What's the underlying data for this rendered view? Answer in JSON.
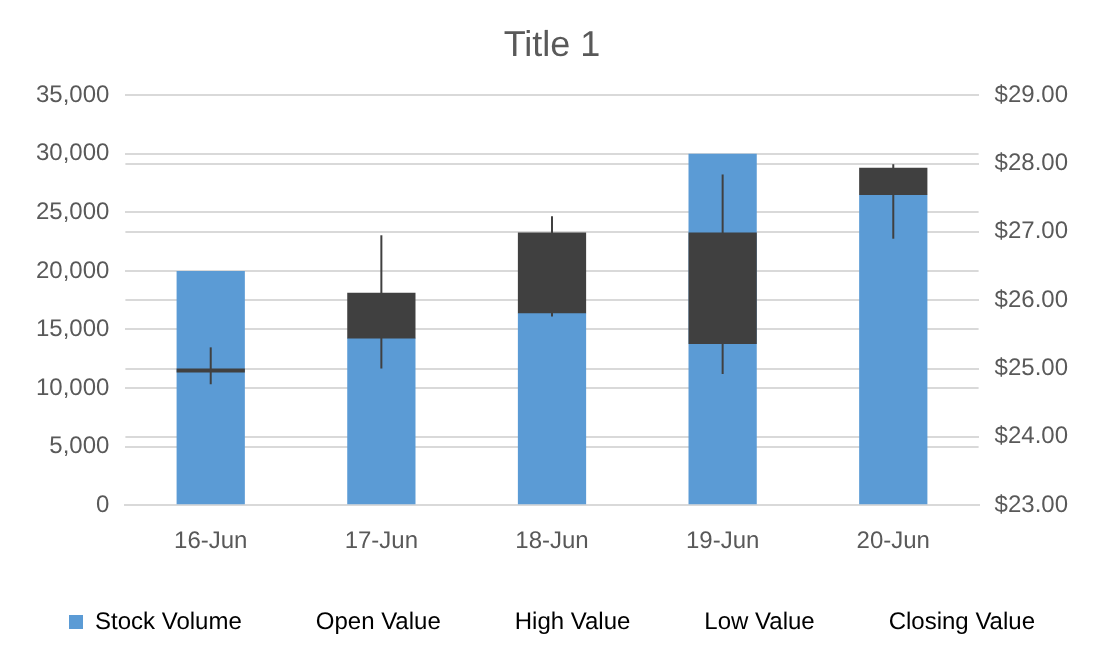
{
  "chart_data": {
    "type": "candlestick",
    "title": "Title 1",
    "categories": [
      "16-Jun",
      "17-Jun",
      "18-Jun",
      "19-Jun",
      "20-Jun"
    ],
    "series": [
      {
        "type": "bar",
        "name": "Stock Volume",
        "color": "#5b9bd5",
        "values": [
          20000,
          14300,
          16400,
          30000,
          26500
        ]
      },
      {
        "axis": "y2",
        "color": "#404040",
        "ohlc": [
          [
            25.0,
            25.31,
            24.77,
            24.95
          ],
          [
            26.11,
            26.95,
            25.0,
            25.44
          ],
          [
            26.99,
            27.23,
            25.76,
            25.81
          ],
          [
            26.99,
            27.84,
            24.92,
            25.36
          ],
          [
            27.94,
            27.99,
            26.9,
            27.54
          ]
        ]
      }
    ],
    "ylim": [
      0,
      35000
    ],
    "yticks": [
      {
        "value": 0,
        "label": "0"
      },
      {
        "value": 5000,
        "label": "5,000"
      },
      {
        "value": 10000,
        "label": "10,000"
      },
      {
        "value": 15000,
        "label": "15,000"
      },
      {
        "value": 20000,
        "label": "20,000"
      },
      {
        "value": 25000,
        "label": "25,000"
      },
      {
        "value": 30000,
        "label": "30,000"
      },
      {
        "value": 35000,
        "label": "35,000"
      }
    ],
    "y2lim": [
      23,
      29
    ],
    "y2ticks": [
      {
        "value": 23,
        "label": "$23.00"
      },
      {
        "value": 24,
        "label": "$24.00"
      },
      {
        "value": 25,
        "label": "$25.00"
      },
      {
        "value": 26,
        "label": "$26.00"
      },
      {
        "value": 27,
        "label": "$27.00"
      },
      {
        "value": 28,
        "label": "$28.00"
      },
      {
        "value": 29,
        "label": "$29.00"
      }
    ],
    "annotations": [
      "Open Value",
      "High Value",
      "Low Value",
      "Closing Value"
    ],
    "grid": true,
    "legend": "bottom"
  }
}
